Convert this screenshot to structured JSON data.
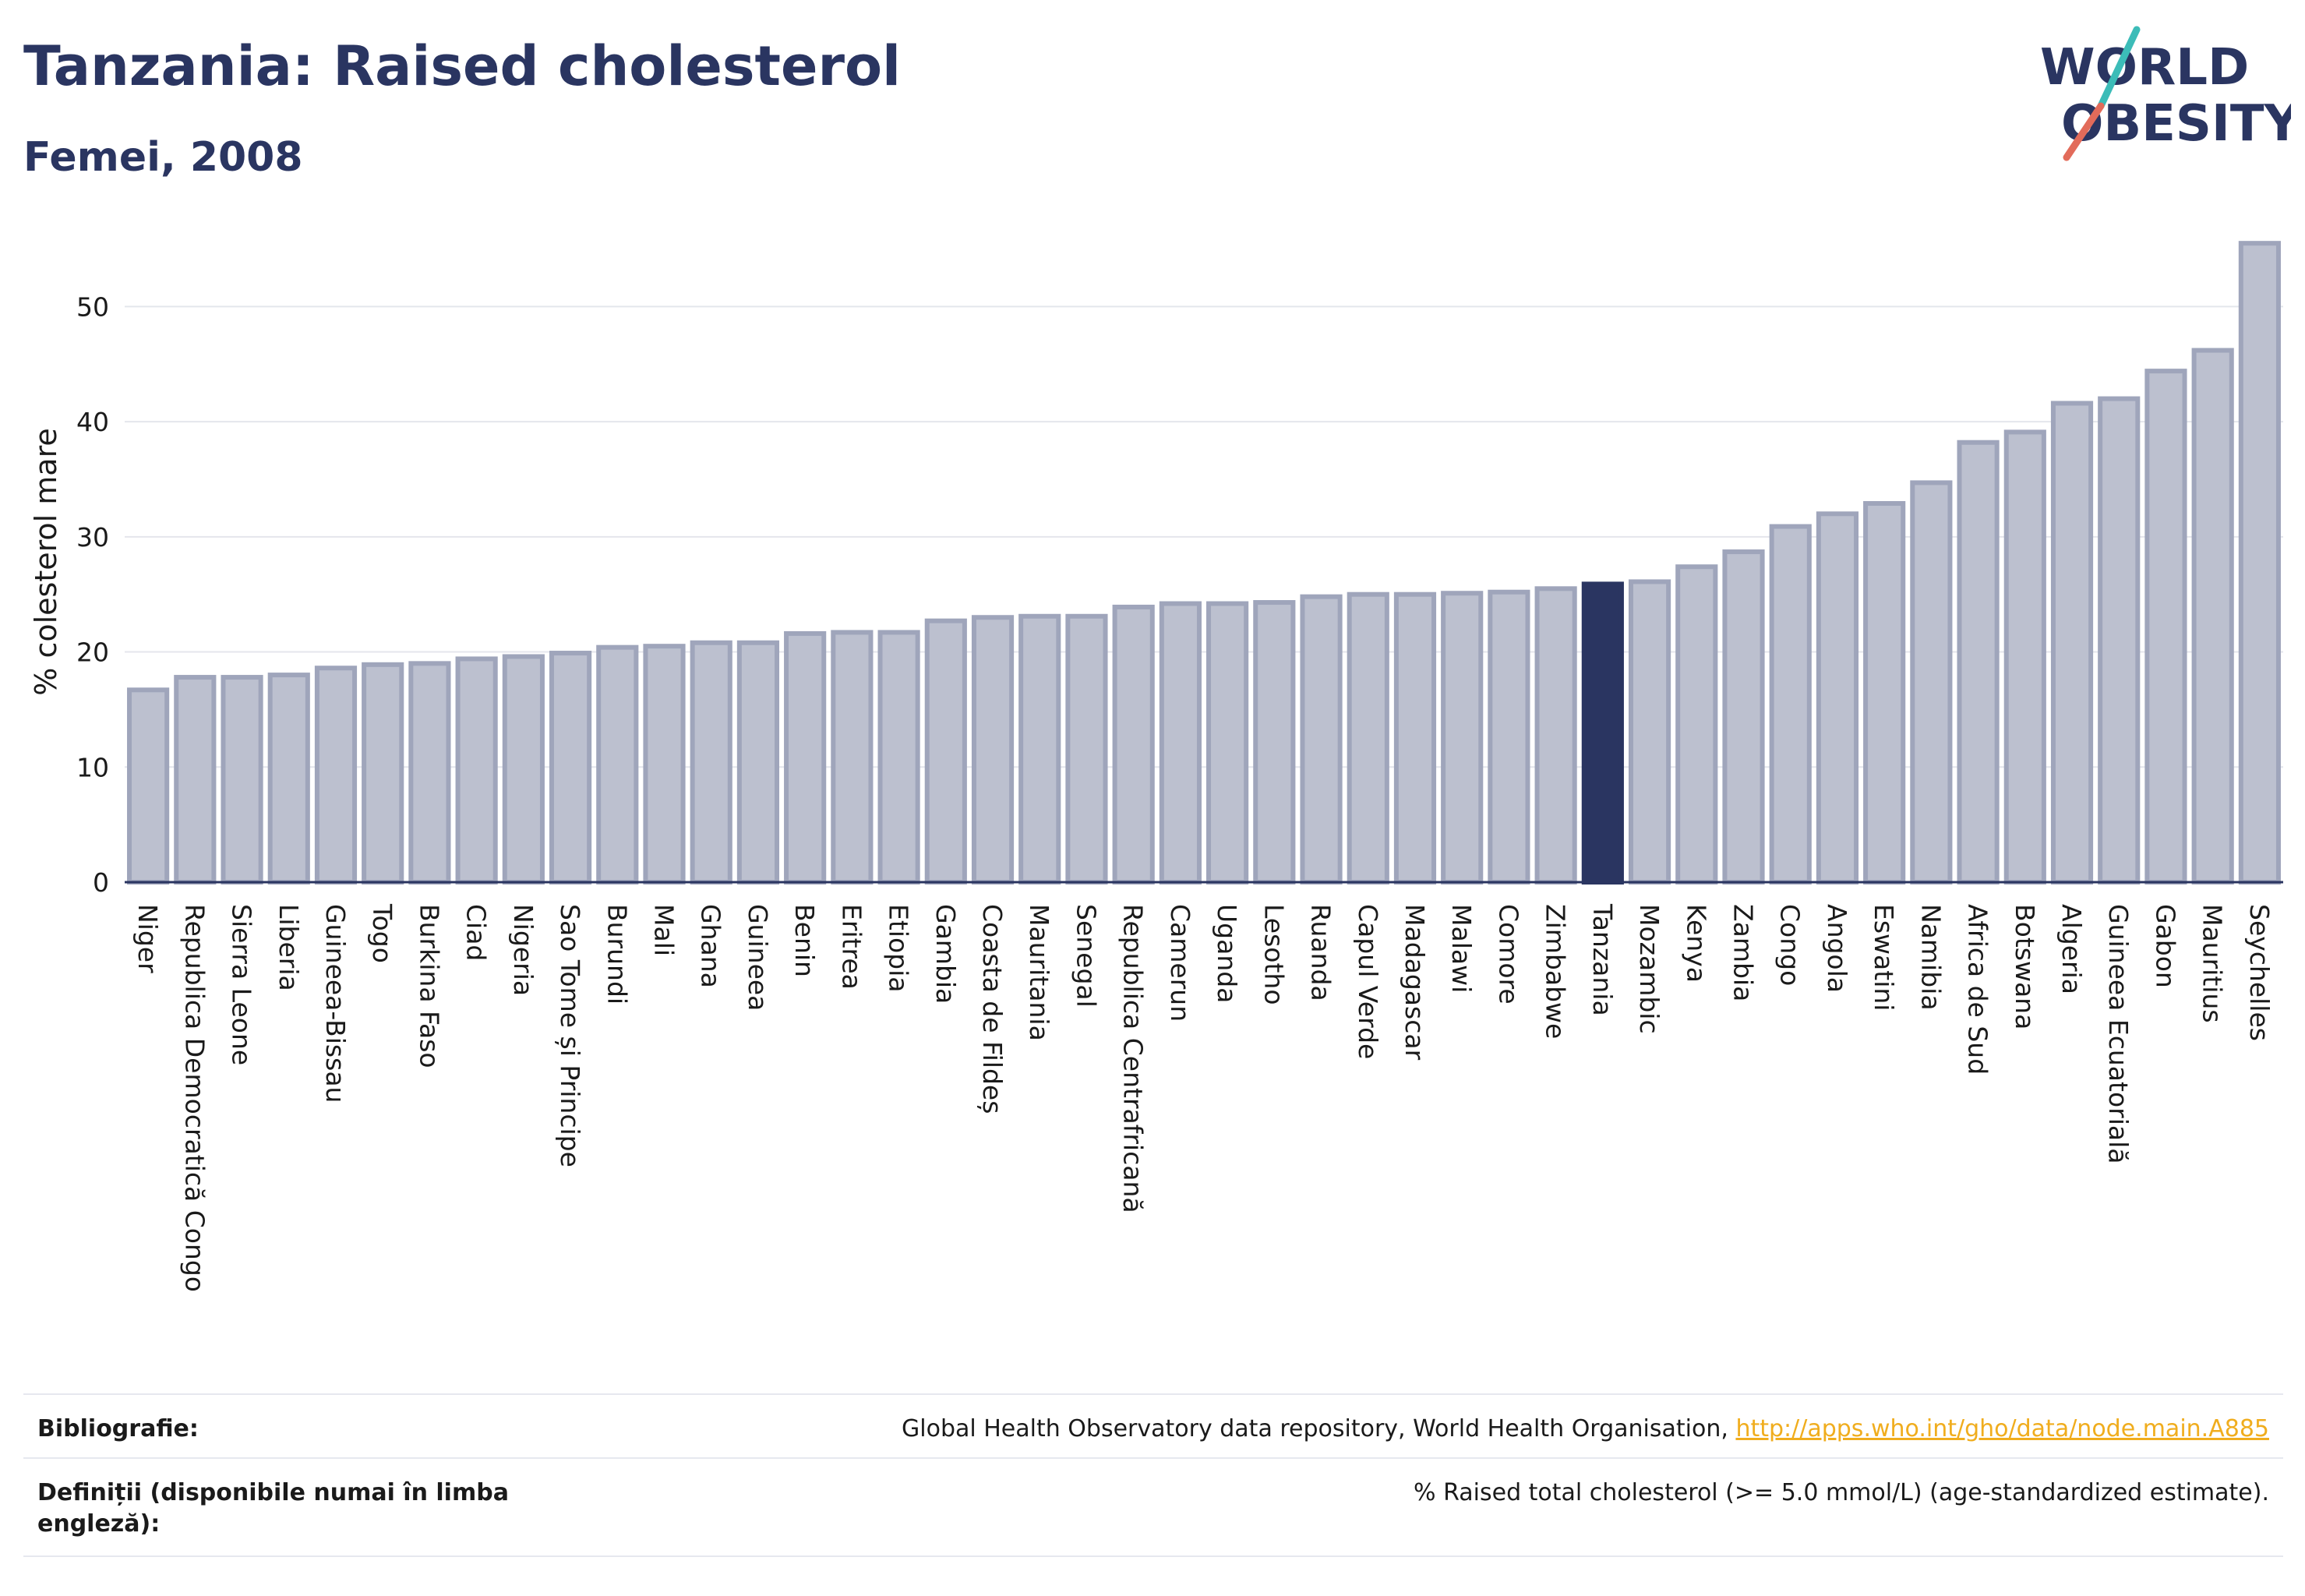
{
  "header": {
    "title": "Tanzania: Raised cholesterol",
    "subtitle": "Femei, 2008"
  },
  "logo": {
    "line1": "WORLD",
    "line2": "OBESITY"
  },
  "chart_data": {
    "type": "bar",
    "ylabel": "% colesterol mare",
    "ylim": [
      0,
      57
    ],
    "yticks": [
      0,
      10,
      20,
      30,
      40,
      50
    ],
    "grid": true,
    "highlight": "Tanzania",
    "colors": {
      "bar": "#bcc0cf",
      "bar_edge": "#9fa5bb",
      "highlight": "#2a3561",
      "axis": "#2a3561",
      "grid": "#e4e6ec"
    },
    "categories": [
      "Niger",
      "Republica Democratică Congo",
      "Sierra Leone",
      "Liberia",
      "Guineea-Bissau",
      "Togo",
      "Burkina Faso",
      "Ciad",
      "Nigeria",
      "Sao Tome și Principe",
      "Burundi",
      "Mali",
      "Ghana",
      "Guineea",
      "Benin",
      "Eritrea",
      "Etiopia",
      "Gambia",
      "Coasta de Fildeș",
      "Mauritania",
      "Senegal",
      "Republica Centrafricană",
      "Camerun",
      "Uganda",
      "Lesotho",
      "Ruanda",
      "Capul Verde",
      "Madagascar",
      "Malawi",
      "Comore",
      "Zimbabwe",
      "Tanzania",
      "Mozambic",
      "Kenya",
      "Zambia",
      "Congo",
      "Angola",
      "Eswatini",
      "Namibia",
      "Africa de Sud",
      "Botswana",
      "Algeria",
      "Guineea Ecuatorială",
      "Gabon",
      "Mauritius",
      "Seychelles"
    ],
    "values": [
      16.7,
      17.8,
      17.8,
      18.0,
      18.6,
      18.9,
      19.0,
      19.4,
      19.6,
      19.9,
      20.4,
      20.5,
      20.8,
      20.8,
      21.6,
      21.7,
      21.7,
      22.7,
      23.0,
      23.1,
      23.1,
      23.9,
      24.2,
      24.2,
      24.3,
      24.8,
      25.0,
      25.0,
      25.1,
      25.2,
      25.5,
      25.9,
      26.1,
      27.4,
      28.7,
      30.9,
      32.0,
      32.9,
      34.7,
      38.2,
      39.1,
      41.6,
      42.0,
      44.4,
      46.2,
      55.5
    ]
  },
  "footer": {
    "bib_label": "Bibliografie:",
    "bib_text": "Global Health Observatory data repository, World Health Organisation, ",
    "bib_link": "http://apps.who.int/gho/data/node.main.A885",
    "def_label": "Definiții (disponibile numai în limba engleză):",
    "def_text": "% Raised total cholesterol (>= 5.0 mmol/L) (age-standardized estimate)."
  }
}
